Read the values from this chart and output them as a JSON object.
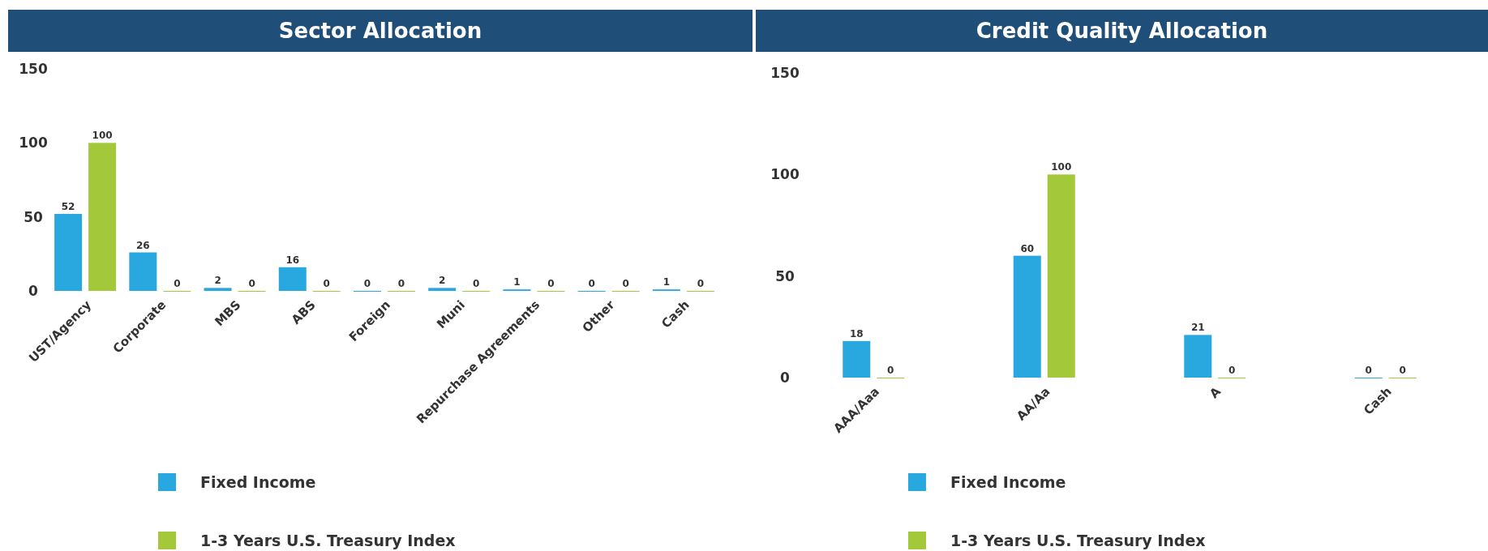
{
  "chart_data": [
    {
      "type": "bar",
      "title": "Sector Allocation",
      "categories": [
        "UST/Agency",
        "Corporate",
        "MBS",
        "ABS",
        "Foreign",
        "Muni",
        "Repurchase Agreements",
        "Other",
        "Cash"
      ],
      "series": [
        {
          "name": "Fixed Income",
          "color": "#29a8e0",
          "values": [
            52,
            26,
            2,
            16,
            0,
            2,
            1,
            0,
            1
          ]
        },
        {
          "name": "1-3 Years U.S. Treasury Index",
          "color": "#a3c93a",
          "values": [
            100,
            0,
            0,
            0,
            0,
            0,
            0,
            0,
            0
          ]
        }
      ],
      "ylim": [
        0,
        150
      ],
      "yticks": [
        0,
        50,
        100,
        150
      ],
      "data_labels": true,
      "grid": false,
      "legend": "bottom",
      "tick_labels": "xy"
    },
    {
      "type": "bar",
      "title": "Credit Quality Allocation",
      "categories": [
        "AAA/Aaa",
        "AA/Aa",
        "A",
        "Cash"
      ],
      "series": [
        {
          "name": "Fixed Income",
          "color": "#29a8e0",
          "values": [
            18,
            60,
            21,
            0
          ]
        },
        {
          "name": "1-3 Years U.S. Treasury Index",
          "color": "#a3c93a",
          "values": [
            0,
            100,
            0,
            0
          ]
        }
      ],
      "ylim": [
        0,
        150
      ],
      "yticks": [
        0,
        50,
        100,
        150
      ],
      "data_labels": true,
      "grid": false,
      "legend": "bottom",
      "tick_labels": "xy"
    }
  ]
}
